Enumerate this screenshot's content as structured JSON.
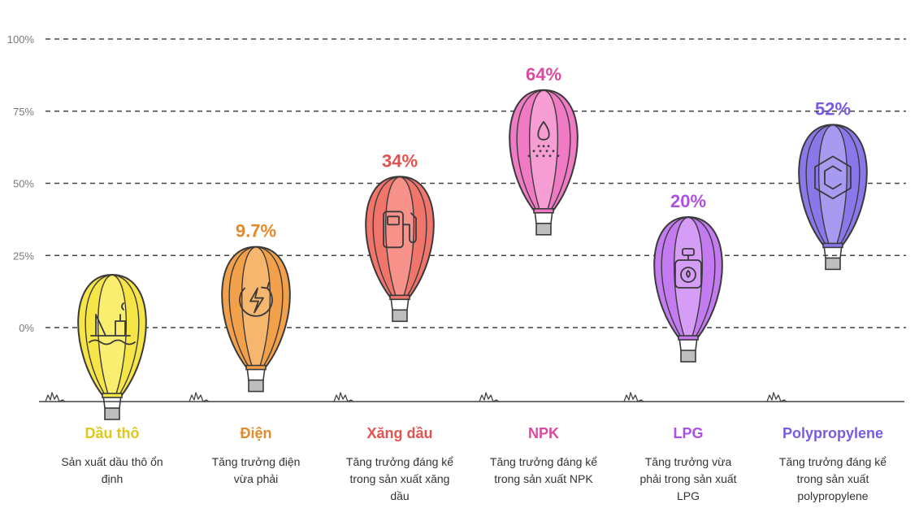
{
  "chart_data": {
    "type": "bar",
    "title": "",
    "xlabel": "",
    "ylabel": "",
    "ylim": [
      0,
      100
    ],
    "y_ticks": [
      {
        "value": 0,
        "label": "0%"
      },
      {
        "value": 25,
        "label": "25%"
      },
      {
        "value": 50,
        "label": "50%"
      },
      {
        "value": 75,
        "label": "75%"
      },
      {
        "value": 100,
        "label": "100%"
      }
    ],
    "grid": true,
    "categories": [
      {
        "name": "Dầu thô",
        "value": 0,
        "value_label": "",
        "desc": [
          "Sản xuất dầu thô ổn",
          "định"
        ],
        "color": "#e0c81a",
        "fill": "#f5e547",
        "light": "#fbf07a",
        "dark": "#8a7a10",
        "icon": "oil-rig-icon"
      },
      {
        "name": "Điện",
        "value": 9.7,
        "value_label": "9.7%",
        "desc": [
          "Tăng trưởng điện",
          "vừa phải"
        ],
        "color": "#e38a2a",
        "fill": "#f3a04a",
        "light": "#f8bb75",
        "dark": "#8a4a10",
        "icon": "power-icon"
      },
      {
        "name": "Xăng dầu",
        "value": 34,
        "value_label": "34%",
        "desc": [
          "Tăng trưởng đáng kể",
          "trong sản xuất xăng",
          "dầu"
        ],
        "color": "#e0554f",
        "fill": "#f2756c",
        "light": "#f89a92",
        "dark": "#8a2a24",
        "icon": "fuel-pump-icon"
      },
      {
        "name": "NPK",
        "value": 64,
        "value_label": "64%",
        "desc": [
          "Tăng trưởng đáng kể",
          "trong sản xuất NPK"
        ],
        "color": "#d94aa0",
        "fill": "#f07ac4",
        "light": "#f7a6d8",
        "dark": "#8a2a66",
        "icon": "fertilizer-icon"
      },
      {
        "name": "LPG",
        "value": 20,
        "value_label": "20%",
        "desc": [
          "Tăng trưởng vừa",
          "phải trong sản xuất",
          "LPG"
        ],
        "color": "#b050e0",
        "fill": "#c47af0",
        "light": "#d9a6f7",
        "dark": "#6a2a8a",
        "icon": "gas-cylinder-icon"
      },
      {
        "name": "Polypropylene",
        "value": 52,
        "value_label": "52%",
        "desc": [
          "Tăng trưởng đáng kể",
          "trong sản xuất",
          "polypropylene"
        ],
        "color": "#7a5ae0",
        "fill": "#8a78ea",
        "light": "#aea2f3",
        "dark": "#3a2a8a",
        "icon": "polymer-icon"
      }
    ]
  }
}
